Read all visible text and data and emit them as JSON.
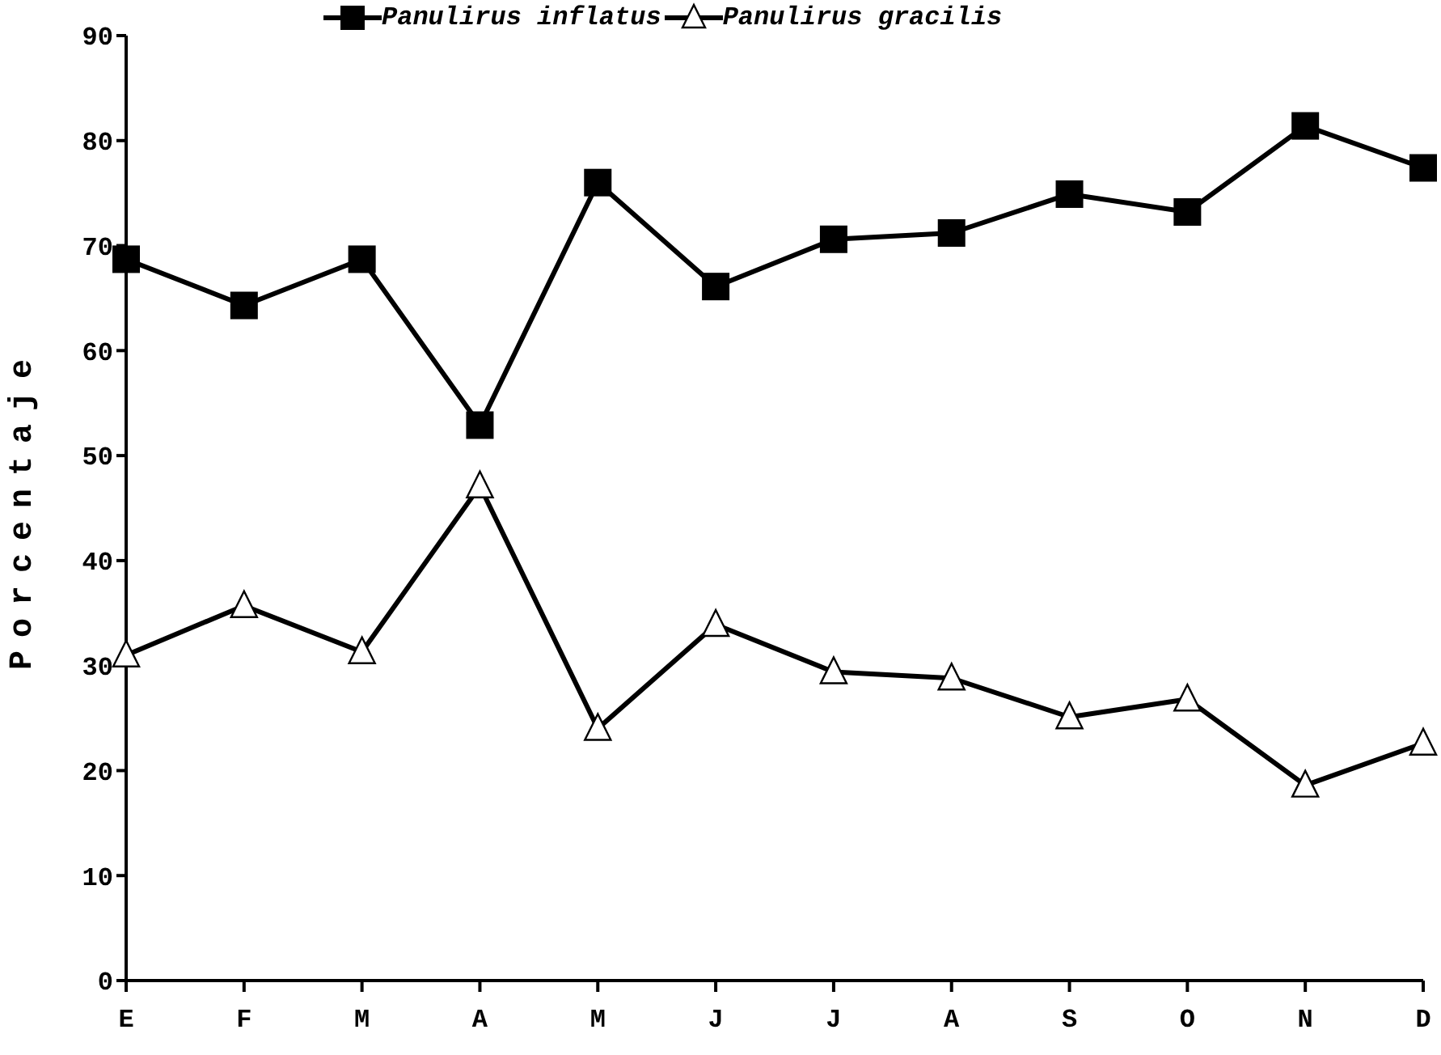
{
  "chart_data": {
    "type": "line",
    "ylabel": "Porcentaje",
    "categories": [
      "E",
      "F",
      "M",
      "A",
      "M",
      "J",
      "J",
      "A",
      "S",
      "O",
      "N",
      "D"
    ],
    "series": [
      {
        "name": "Panulirus inflatus",
        "color": "#000000",
        "marker": "square",
        "values": [
          68.7,
          64.3,
          68.7,
          52.9,
          76.0,
          66.1,
          70.6,
          71.2,
          74.9,
          73.2,
          81.4,
          77.4
        ]
      },
      {
        "name": "Panulirus gracilis",
        "color": "#000000",
        "marker": "triangle",
        "values": [
          31.0,
          35.7,
          31.3,
          47.1,
          24.0,
          33.9,
          29.4,
          28.8,
          25.1,
          26.8,
          18.6,
          22.6
        ]
      }
    ],
    "ylim": [
      0,
      90
    ],
    "yticks": [
      0,
      10,
      20,
      30,
      40,
      50,
      60,
      70,
      80,
      90
    ],
    "grid": false,
    "legend": "top",
    "line_style": "solid"
  }
}
